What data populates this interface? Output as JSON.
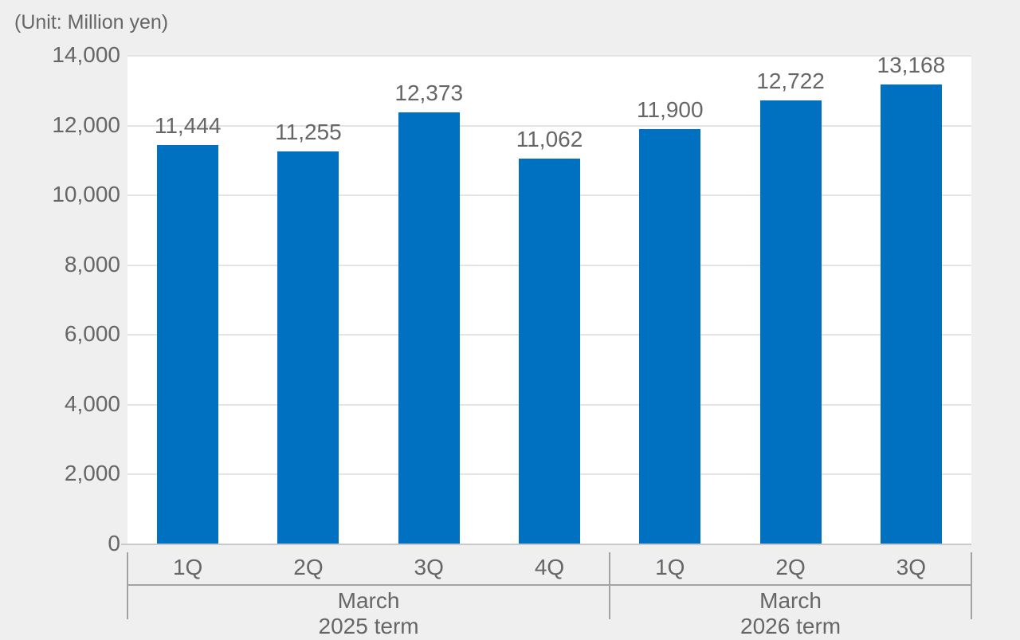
{
  "unit_label": "(Unit: Million yen)",
  "colors": {
    "background": "#efefef",
    "plot_background": "#ffffff",
    "bar": "#0070c0",
    "text": "#666666",
    "gridline": "#e4e4e4",
    "axis_line": "#c9c9c9",
    "separator_line": "#a3a3a3"
  },
  "chart_data": {
    "type": "bar",
    "title": "",
    "xlabel": "",
    "ylabel": "(Unit: Million yen)",
    "categories": [
      "1Q",
      "2Q",
      "3Q",
      "4Q",
      "1Q",
      "2Q",
      "3Q"
    ],
    "values": [
      11444,
      11255,
      12373,
      11062,
      11900,
      12722,
      13168
    ],
    "data_labels": [
      "11,444",
      "11,255",
      "12,373",
      "11,062",
      "11,900",
      "12,722",
      "13,168"
    ],
    "groups": [
      {
        "label_lines": [
          "March",
          "2025 term"
        ],
        "quarter_count": 4
      },
      {
        "label_lines": [
          "March",
          "2026 term"
        ],
        "quarter_count": 3
      }
    ],
    "ylim": [
      0,
      14000
    ],
    "ytick_step": 2000,
    "ytick_labels": [
      "0",
      "2,000",
      "4,000",
      "6,000",
      "8,000",
      "10,000",
      "12,000",
      "14,000"
    ],
    "grid": true,
    "legend_position": "none"
  }
}
